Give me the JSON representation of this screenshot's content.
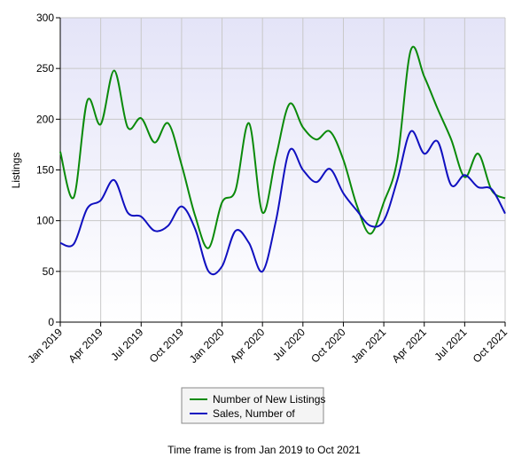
{
  "chart_data": {
    "type": "line",
    "y_label": "Listings",
    "footer": "Time frame is from Jan 2019 to Oct 2021",
    "categories": [
      "Jan 2019",
      null,
      null,
      "Apr 2019",
      null,
      null,
      "Jul 2019",
      null,
      null,
      "Oct 2019",
      null,
      null,
      "Jan 2020",
      null,
      null,
      "Apr 2020",
      null,
      null,
      "Jul 2020",
      null,
      null,
      "Oct 2020",
      null,
      null,
      "Jan 2021",
      null,
      null,
      "Apr 2021",
      null,
      null,
      "Jul 2021",
      null,
      null,
      "Oct 2021"
    ],
    "series": [
      {
        "name": "Number of New Listings",
        "color": "#0a8a0a",
        "values": [
          168,
          123,
          218,
          195,
          248,
          192,
          201,
          177,
          196,
          155,
          105,
          73,
          118,
          130,
          196,
          108,
          163,
          215,
          192,
          180,
          188,
          160,
          115,
          87,
          118,
          160,
          268,
          242,
          210,
          180,
          143,
          166,
          130,
          122
        ]
      },
      {
        "name": "Sales, Number of",
        "color": "#1010c0",
        "values": [
          78,
          77,
          112,
          120,
          140,
          108,
          104,
          90,
          95,
          114,
          92,
          50,
          55,
          90,
          78,
          50,
          100,
          169,
          150,
          138,
          151,
          127,
          110,
          95,
          100,
          140,
          188,
          166,
          178,
          135,
          145,
          133,
          131,
          107
        ]
      }
    ],
    "ylim": [
      0,
      300
    ],
    "yticks": [
      0,
      50,
      100,
      150,
      200,
      250,
      300
    ],
    "grid": true
  }
}
